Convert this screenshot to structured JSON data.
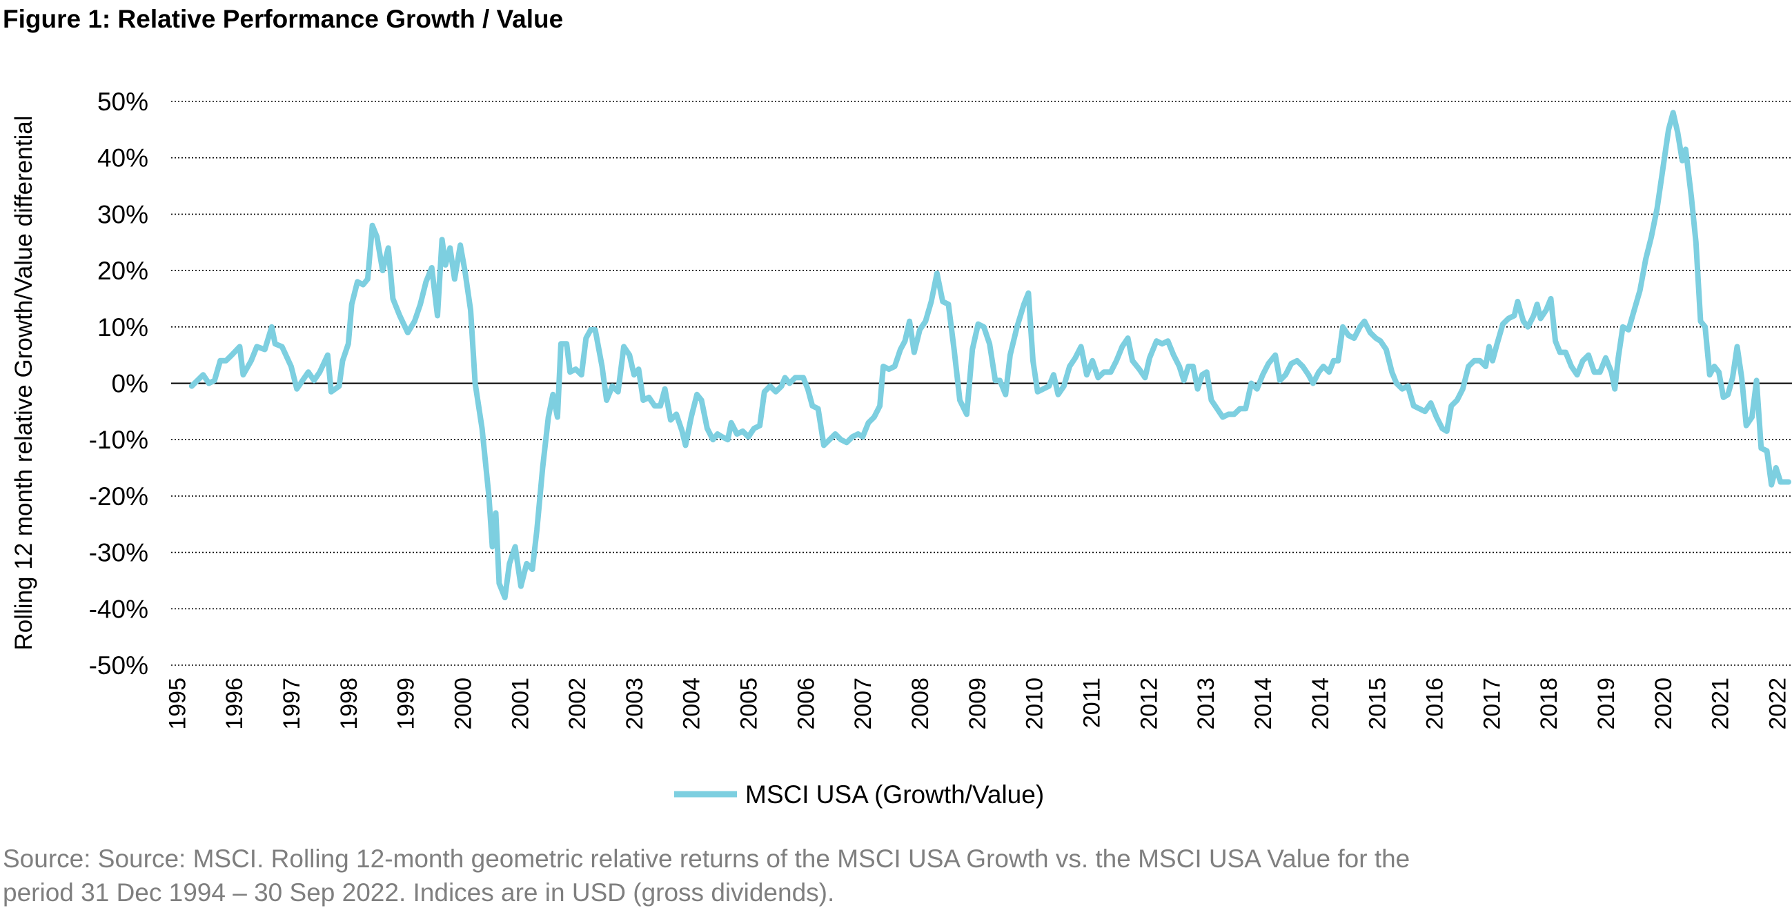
{
  "chart_data": {
    "type": "line",
    "title": "Figure 1: Relative Performance Growth / Value",
    "ylabel": "Rolling 12 month relative Growth/Value differential",
    "source": [
      "Source: Source: MSCI. Rolling 12-month geometric relative returns of the MSCI USA Growth vs. the MSCI USA Value for the",
      "period 31 Dec 1994 – 30 Sep 2022. Indices are in USD (gross dividends)."
    ],
    "xlim": [
      1994.9,
      2023.26
    ],
    "xticks": [
      1995,
      1996,
      1997,
      1998,
      1999,
      2000,
      2001,
      2002,
      2003,
      2004,
      2005,
      2006,
      2007,
      2008,
      2009,
      2010,
      2011,
      2012,
      2013,
      2014,
      {
        "value": 2015,
        "label": "2014"
      },
      {
        "value": 2016,
        "label": "2015"
      },
      {
        "value": 2017,
        "label": "2016"
      },
      {
        "value": 2018,
        "label": "2017"
      },
      {
        "value": 2019,
        "label": "2018"
      },
      {
        "value": 2020,
        "label": "2019"
      },
      {
        "value": 2021,
        "label": "2020"
      },
      {
        "value": 2022,
        "label": "2021"
      },
      {
        "value": 2023,
        "label": "2022"
      }
    ],
    "ylim": [
      -50,
      50
    ],
    "yticks": [
      {
        "value": 50,
        "label": "50%"
      },
      {
        "value": 40,
        "label": "40%"
      },
      {
        "value": 30,
        "label": "30%"
      },
      {
        "value": 20,
        "label": "20%"
      },
      {
        "value": 10,
        "label": "10%"
      },
      {
        "value": 0,
        "label": "0%"
      },
      {
        "value": -10,
        "label": "-10%"
      },
      {
        "value": -20,
        "label": "-20%"
      },
      {
        "value": -30,
        "label": "-30%"
      },
      {
        "value": -40,
        "label": "-40%"
      },
      {
        "value": -50,
        "label": "-50%"
      }
    ],
    "grid": true,
    "legend": "bottom",
    "x": [
      1995.26,
      1995.46,
      1995.56,
      1995.66,
      1995.76,
      1995.86,
      1995.96,
      1996.1,
      1996.16,
      1996.3,
      1996.4,
      1996.54,
      1996.66,
      1996.72,
      1996.84,
      1997.0,
      1997.1,
      1997.2,
      1997.3,
      1997.4,
      1997.5,
      1997.64,
      1997.7,
      1997.84,
      1997.9,
      1998.0,
      1998.06,
      1998.16,
      1998.26,
      1998.34,
      1998.42,
      1998.5,
      1998.6,
      1998.7,
      1998.78,
      1998.9,
      1999.04,
      1999.16,
      1999.26,
      1999.36,
      1999.46,
      1999.56,
      1999.64,
      1999.7,
      1999.78,
      1999.86,
      1999.96,
      2000.04,
      2000.14,
      2000.22,
      2000.34,
      2000.46,
      2000.52,
      2000.58,
      2000.64,
      2000.74,
      2000.82,
      2000.92,
      2001.02,
      2001.12,
      2001.22,
      2001.3,
      2001.4,
      2001.5,
      2001.58,
      2001.66,
      2001.72,
      2001.82,
      2001.88,
      2001.98,
      2002.08,
      2002.16,
      2002.24,
      2002.32,
      2002.44,
      2002.52,
      2002.62,
      2002.72,
      2002.82,
      2002.92,
      2003.0,
      2003.08,
      2003.16,
      2003.26,
      2003.36,
      2003.46,
      2003.54,
      2003.64,
      2003.74,
      2003.84,
      2003.9,
      2004.0,
      2004.1,
      2004.18,
      2004.28,
      2004.38,
      2004.46,
      2004.54,
      2004.64,
      2004.7,
      2004.8,
      2004.9,
      2005.0,
      2005.1,
      2005.2,
      2005.28,
      2005.38,
      2005.48,
      2005.58,
      2005.64,
      2005.72,
      2005.82,
      2005.96,
      2006.04,
      2006.12,
      2006.22,
      2006.32,
      2006.42,
      2006.52,
      2006.62,
      2006.72,
      2006.82,
      2006.92,
      2007.0,
      2007.1,
      2007.2,
      2007.3,
      2007.36,
      2007.46,
      2007.56,
      2007.66,
      2007.74,
      2007.82,
      2007.9,
      2008.0,
      2008.1,
      2008.2,
      2008.3,
      2008.4,
      2008.5,
      2008.6,
      2008.7,
      2008.82,
      2008.92,
      2009.02,
      2009.12,
      2009.22,
      2009.32,
      2009.4,
      2009.5,
      2009.58,
      2009.7,
      2009.82,
      2009.9,
      2009.98,
      2010.06,
      2010.16,
      2010.26,
      2010.34,
      2010.42,
      2010.52,
      2010.62,
      2010.72,
      2010.82,
      2010.92,
      2011.02,
      2011.12,
      2011.22,
      2011.34,
      2011.44,
      2011.54,
      2011.64,
      2011.72,
      2011.84,
      2011.94,
      2012.02,
      2012.14,
      2012.24,
      2012.34,
      2012.44,
      2012.54,
      2012.62,
      2012.7,
      2012.78,
      2012.86,
      2012.94,
      2013.02,
      2013.1,
      2013.2,
      2013.3,
      2013.4,
      2013.5,
      2013.6,
      2013.7,
      2013.8,
      2013.9,
      2014.0,
      2014.1,
      2014.22,
      2014.3,
      2014.4,
      2014.5,
      2014.6,
      2014.7,
      2014.8,
      2014.88,
      2014.98,
      2015.06,
      2015.16,
      2015.24,
      2015.32,
      2015.4,
      2015.5,
      2015.6,
      2015.7,
      2015.78,
      2015.88,
      2015.98,
      2016.06,
      2016.16,
      2016.26,
      2016.34,
      2016.44,
      2016.54,
      2016.64,
      2016.74,
      2016.84,
      2016.94,
      2017.04,
      2017.14,
      2017.22,
      2017.3,
      2017.4,
      2017.5,
      2017.6,
      2017.7,
      2017.8,
      2017.9,
      2017.96,
      2018.02,
      2018.1,
      2018.2,
      2018.3,
      2018.4,
      2018.46,
      2018.56,
      2018.64,
      2018.74,
      2018.8,
      2018.86,
      2018.96,
      2019.04,
      2019.12,
      2019.2,
      2019.3,
      2019.4,
      2019.5,
      2019.6,
      2019.7,
      2019.8,
      2019.9,
      2020.0,
      2020.1,
      2020.16,
      2020.22,
      2020.3,
      2020.4,
      2020.5,
      2020.6,
      2020.7,
      2020.8,
      2020.9,
      2021.0,
      2021.1,
      2021.18,
      2021.26,
      2021.34,
      2021.4,
      2021.5,
      2021.58,
      2021.66,
      2021.74,
      2021.82,
      2021.9,
      2021.98,
      2022.06,
      2022.14,
      2022.22,
      2022.3,
      2022.38,
      2022.46,
      2022.56,
      2022.64,
      2022.72,
      2022.82,
      2022.9,
      2022.98,
      2023.06,
      2023.2
    ],
    "series": [
      {
        "name": "MSCI USA (Growth/Value)",
        "color": "#7dcfe0",
        "values": [
          -0.5,
          1.5,
          0,
          0.5,
          4,
          4,
          5,
          6.5,
          1.5,
          4,
          6.5,
          6,
          10,
          7,
          6.5,
          3,
          -1,
          0.5,
          2,
          0.5,
          2,
          5,
          -1.5,
          -0.5,
          4,
          7,
          14,
          18,
          17.5,
          18.5,
          28,
          26,
          20,
          24,
          15,
          12,
          9,
          11,
          14,
          18,
          20.5,
          12,
          25.5,
          21,
          24,
          18.5,
          24.5,
          20,
          13,
          0,
          -8,
          -20,
          -29,
          -23,
          -35.5,
          -38,
          -32,
          -29,
          -36,
          -32,
          -33,
          -26,
          -15,
          -6,
          -2,
          -6,
          7,
          7,
          2,
          2.5,
          1.5,
          8,
          9.5,
          9.5,
          3,
          -3,
          -0.5,
          -1.5,
          6.5,
          5,
          1.5,
          2.5,
          -3,
          -2.5,
          -4,
          -4,
          -1,
          -6.5,
          -5.5,
          -8.5,
          -11,
          -6,
          -2,
          -3,
          -8,
          -10,
          -9,
          -9.5,
          -10,
          -7,
          -9,
          -8.5,
          -9.5,
          -8,
          -7.5,
          -1.5,
          -0.5,
          -1.5,
          -0.5,
          1,
          0,
          1,
          1,
          -1,
          -4,
          -4.5,
          -11,
          -10,
          -9,
          -10,
          -10.5,
          -9.5,
          -9,
          -9.5,
          -7,
          -6,
          -4,
          3,
          2.5,
          3,
          6,
          7.5,
          11,
          5.5,
          9.5,
          11,
          14.5,
          19.5,
          14.5,
          14,
          6,
          -3,
          -5.5,
          6,
          10.5,
          10,
          7,
          0.5,
          0.5,
          -2,
          5,
          10,
          14,
          16,
          4,
          -1.5,
          -1,
          -0.5,
          1.5,
          -2,
          -0.5,
          3,
          4.5,
          6.5,
          1.5,
          4,
          1,
          2,
          2,
          4,
          6.5,
          8,
          4,
          2.5,
          1,
          4.5,
          7.5,
          7,
          7.5,
          5,
          3,
          0.5,
          3,
          3,
          -1,
          1.5,
          2,
          -3,
          -4.5,
          -6,
          -5.5,
          -5.5,
          -4.5,
          -4.5,
          0,
          -1,
          1.5,
          3.5,
          5,
          0.5,
          1.5,
          3.5,
          4,
          3,
          1.5,
          0,
          2,
          3,
          2,
          4,
          4,
          10,
          8.5,
          8,
          10,
          11,
          9,
          8,
          7.5,
          6,
          2,
          0,
          -1,
          -0.5,
          -4,
          -4.5,
          -5,
          -3.5,
          -6,
          -8,
          -8.5,
          -4,
          -3,
          -1,
          3,
          4,
          4,
          3,
          6.5,
          4,
          7,
          10.5,
          11.5,
          12,
          14.5,
          11,
          10,
          12,
          14,
          11.5,
          13,
          15,
          7.5,
          5.5,
          5.5,
          3,
          1.5,
          4,
          5,
          2,
          2,
          4.5,
          2,
          -1,
          4.5,
          10,
          9.5,
          13,
          16.5,
          22,
          26,
          31,
          38,
          45,
          48,
          44.5,
          39.5,
          41.5,
          33,
          25,
          11,
          10,
          1.5,
          3,
          2,
          -2.5,
          -2,
          1,
          6.5,
          1,
          -7.5,
          -6,
          0.5,
          -11.5,
          -12,
          -18,
          -15,
          -17.5,
          -17.5
        ]
      }
    ]
  }
}
